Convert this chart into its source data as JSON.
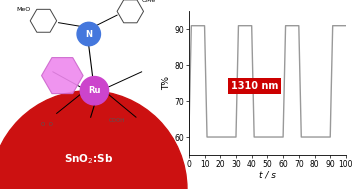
{
  "graph_bg": "#ffffff",
  "line_color": "#999999",
  "line_width": 1.0,
  "ylim": [
    55,
    95
  ],
  "xlim": [
    0,
    100
  ],
  "yticks": [
    60,
    70,
    80,
    90
  ],
  "xticks": [
    0,
    10,
    20,
    30,
    40,
    50,
    60,
    70,
    80,
    90,
    100
  ],
  "ylabel": "T%",
  "xlabel": "t / s",
  "annotation_text": "1310 nm",
  "annotation_bg": "#cc0000",
  "annotation_fg": "#ffffff",
  "high_T": 91.0,
  "low_T": 60.0,
  "high_duration": 10,
  "low_duration": 20,
  "rise_time": 1.5,
  "total_time": 100,
  "snO2_label": "SnO$_2$:Sb",
  "snO2_color": "#cc1111",
  "N_color": "#4477dd",
  "Ru_color": "#cc44cc",
  "pink_color": "#ee88ee"
}
